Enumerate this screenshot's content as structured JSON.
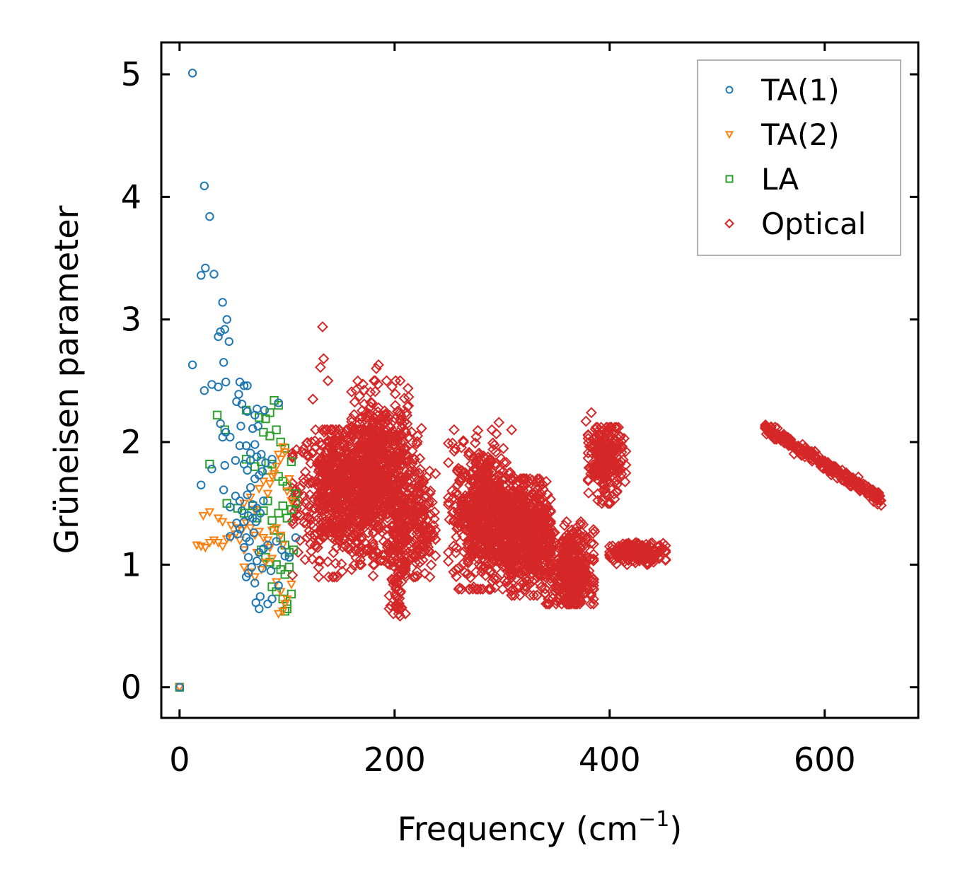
{
  "chart_data": {
    "type": "scatter",
    "title": "",
    "xlabel": "Frequency (cm",
    "xlabel_sup": "−1",
    "xlabel_tail": ")",
    "ylabel": "Grüneisen parameter",
    "xlim": [
      -17,
      687
    ],
    "ylim": [
      -0.25,
      5.26
    ],
    "xticks": [
      0,
      200,
      400,
      600
    ],
    "xtick_labels": [
      "0",
      "200",
      "400",
      "600"
    ],
    "yticks": [
      0,
      1,
      2,
      3,
      4,
      5
    ],
    "ytick_labels": [
      "0",
      "1",
      "2",
      "3",
      "4",
      "5"
    ],
    "legend_position": "top-right",
    "series": [
      {
        "name": "TA(1)",
        "marker": "circle",
        "color": "#1f77b4",
        "points": [
          [
            0,
            0
          ],
          [
            12,
            5.01
          ],
          [
            23,
            4.09
          ],
          [
            28,
            3.84
          ],
          [
            20,
            3.36
          ],
          [
            24,
            3.42
          ],
          [
            32,
            3.37
          ],
          [
            40,
            3.14
          ],
          [
            44,
            3.0
          ],
          [
            42,
            2.92
          ],
          [
            38,
            2.9
          ],
          [
            36,
            2.86
          ],
          [
            46,
            2.82
          ],
          [
            41,
            2.65
          ],
          [
            12,
            2.63
          ],
          [
            30,
            2.47
          ],
          [
            43,
            2.49
          ],
          [
            36,
            2.45
          ],
          [
            23,
            2.42
          ],
          [
            56,
            2.49
          ],
          [
            60,
            2.46
          ],
          [
            63,
            2.46
          ],
          [
            55,
            2.39
          ],
          [
            58,
            2.31
          ],
          [
            53,
            2.33
          ],
          [
            63,
            2.25
          ],
          [
            70,
            2.22
          ],
          [
            72,
            2.27
          ],
          [
            79,
            2.26
          ],
          [
            92,
            2.32
          ],
          [
            38,
            2.15
          ],
          [
            43,
            2.08
          ],
          [
            57,
            2.13
          ],
          [
            40,
            2.04
          ],
          [
            47,
            2.04
          ],
          [
            68,
            2.11
          ],
          [
            73,
            2.13
          ],
          [
            56,
            1.97
          ],
          [
            62,
            1.97
          ],
          [
            66,
            1.91
          ],
          [
            70,
            1.98
          ],
          [
            66,
            1.85
          ],
          [
            72,
            1.88
          ],
          [
            76,
            1.9
          ],
          [
            80,
            1.83
          ],
          [
            86,
            1.86
          ],
          [
            52,
            1.85
          ],
          [
            60,
            1.82
          ],
          [
            63,
            1.77
          ],
          [
            70,
            1.7
          ],
          [
            74,
            1.73
          ],
          [
            77,
            1.76
          ],
          [
            30,
            1.78
          ],
          [
            42,
            1.81
          ],
          [
            20,
            1.65
          ],
          [
            41,
            1.61
          ],
          [
            52,
            1.56
          ],
          [
            56,
            1.52
          ],
          [
            63,
            1.57
          ],
          [
            66,
            1.63
          ],
          [
            68,
            1.49
          ],
          [
            72,
            1.46
          ],
          [
            78,
            1.52
          ],
          [
            47,
            1.47
          ],
          [
            58,
            1.44
          ],
          [
            64,
            1.4
          ],
          [
            68,
            1.38
          ],
          [
            71,
            1.35
          ],
          [
            75,
            1.42
          ],
          [
            53,
            1.34
          ],
          [
            56,
            1.29
          ],
          [
            60,
            1.35
          ],
          [
            47,
            1.23
          ],
          [
            54,
            1.25
          ],
          [
            62,
            1.22
          ],
          [
            65,
            1.19
          ],
          [
            69,
            1.26
          ],
          [
            60,
            1.14
          ],
          [
            64,
            1.06
          ],
          [
            74,
            1.1
          ],
          [
            78,
            1.13
          ],
          [
            82,
            1.16
          ],
          [
            90,
            1.19
          ],
          [
            95,
            1.12
          ],
          [
            98,
            1.07
          ],
          [
            72,
            1.03
          ],
          [
            67,
            0.98
          ],
          [
            64,
            0.93
          ],
          [
            62,
            0.9
          ],
          [
            77,
            0.97
          ],
          [
            70,
            0.85
          ],
          [
            71,
            0.69
          ],
          [
            75,
            0.74
          ],
          [
            74,
            0.64
          ],
          [
            82,
            0.68
          ],
          [
            86,
            0.72
          ],
          [
            92,
            0.83
          ],
          [
            85,
            0.95
          ],
          [
            102,
            1.06
          ],
          [
            108,
            1.22
          ]
        ]
      },
      {
        "name": "TA(2)",
        "marker": "triangle-down",
        "color": "#ff7f0e",
        "points": [
          [
            0,
            0
          ],
          [
            16,
            1.16
          ],
          [
            20,
            1.15
          ],
          [
            24,
            1.14
          ],
          [
            28,
            1.18
          ],
          [
            32,
            1.2
          ],
          [
            36,
            1.18
          ],
          [
            40,
            1.15
          ],
          [
            44,
            1.21
          ],
          [
            48,
            1.22
          ],
          [
            52,
            1.25
          ],
          [
            56,
            1.2
          ],
          [
            22,
            1.4
          ],
          [
            28,
            1.43
          ],
          [
            36,
            1.38
          ],
          [
            40,
            1.35
          ],
          [
            48,
            1.32
          ],
          [
            54,
            1.3
          ],
          [
            58,
            1.28
          ],
          [
            62,
            1.34
          ],
          [
            66,
            1.3
          ],
          [
            70,
            1.24
          ],
          [
            74,
            1.27
          ],
          [
            78,
            1.22
          ],
          [
            82,
            1.2
          ],
          [
            86,
            1.28
          ],
          [
            90,
            1.3
          ],
          [
            94,
            1.24
          ],
          [
            60,
            1.5
          ],
          [
            66,
            1.55
          ],
          [
            70,
            1.45
          ],
          [
            74,
            1.62
          ],
          [
            78,
            1.68
          ],
          [
            82,
            1.58
          ],
          [
            86,
            1.72
          ],
          [
            90,
            1.8
          ],
          [
            94,
            1.86
          ],
          [
            98,
            1.92
          ],
          [
            84,
            1.66
          ],
          [
            88,
            1.74
          ],
          [
            92,
            1.9
          ],
          [
            96,
            1.96
          ],
          [
            100,
            1.6
          ],
          [
            102,
            1.7
          ],
          [
            104,
            1.52
          ],
          [
            60,
            0.98
          ],
          [
            66,
            0.94
          ],
          [
            70,
            0.9
          ],
          [
            76,
            0.96
          ],
          [
            80,
            1.02
          ],
          [
            86,
            1.05
          ],
          [
            90,
            0.86
          ],
          [
            94,
            0.78
          ],
          [
            98,
            0.68
          ],
          [
            96,
            0.62
          ],
          [
            92,
            0.6
          ],
          [
            100,
            0.72
          ],
          [
            104,
            0.84
          ],
          [
            60,
            1.12
          ],
          [
            72,
            1.1
          ],
          [
            84,
            1.14
          ],
          [
            96,
            1.16
          ]
        ]
      },
      {
        "name": "LA",
        "marker": "square",
        "color": "#2ca02c",
        "points": [
          [
            0,
            0
          ],
          [
            35,
            2.22
          ],
          [
            42,
            2.1
          ],
          [
            62,
            2.26
          ],
          [
            74,
            2.2
          ],
          [
            80,
            2.19
          ],
          [
            84,
            2.24
          ],
          [
            88,
            2.34
          ],
          [
            92,
            2.3
          ],
          [
            78,
            2.08
          ],
          [
            84,
            2.05
          ],
          [
            90,
            2.1
          ],
          [
            94,
            2.0
          ],
          [
            98,
            1.95
          ],
          [
            28,
            1.82
          ],
          [
            62,
            1.86
          ],
          [
            70,
            1.8
          ],
          [
            76,
            1.84
          ],
          [
            82,
            1.77
          ],
          [
            86,
            1.82
          ],
          [
            92,
            1.72
          ],
          [
            96,
            1.68
          ],
          [
            100,
            1.64
          ],
          [
            104,
            1.84
          ],
          [
            108,
            1.58
          ],
          [
            44,
            1.5
          ],
          [
            54,
            1.46
          ],
          [
            60,
            1.42
          ],
          [
            68,
            1.48
          ],
          [
            72,
            1.38
          ],
          [
            78,
            1.44
          ],
          [
            82,
            1.52
          ],
          [
            86,
            1.36
          ],
          [
            92,
            1.42
          ],
          [
            96,
            1.48
          ],
          [
            100,
            1.38
          ],
          [
            104,
            1.45
          ],
          [
            108,
            1.5
          ],
          [
            88,
            1.28
          ],
          [
            94,
            1.22
          ],
          [
            98,
            1.16
          ],
          [
            102,
            1.1
          ],
          [
            106,
            1.12
          ],
          [
            76,
            1.12
          ],
          [
            80,
            1.06
          ],
          [
            84,
            1.02
          ],
          [
            90,
            1.0
          ],
          [
            94,
            0.96
          ],
          [
            98,
            0.92
          ],
          [
            102,
            0.98
          ],
          [
            86,
            0.82
          ],
          [
            90,
            0.78
          ],
          [
            96,
            0.72
          ],
          [
            100,
            0.68
          ],
          [
            104,
            0.76
          ],
          [
            98,
            0.62
          ],
          [
            100,
            0.64
          ]
        ]
      },
      {
        "name": "Optical",
        "marker": "diamond",
        "color": "#d62728",
        "clusters": [
          {
            "x": [
              105,
              180
            ],
            "y": [
              0.9,
              2.1
            ],
            "n": 700,
            "center": [
              150,
              1.6
            ],
            "spread": [
              20,
              0.27
            ]
          },
          {
            "x": [
              160,
              225
            ],
            "y": [
              1.0,
              2.5
            ],
            "n": 700,
            "center": [
              188,
              1.75
            ],
            "spread": [
              15,
              0.3
            ]
          },
          {
            "x": [
              195,
              210
            ],
            "y": [
              0.6,
              1.8
            ],
            "n": 120,
            "center": [
              203,
              1.1
            ],
            "spread": [
              5,
              0.3
            ]
          },
          {
            "x": [
              210,
              238
            ],
            "y": [
              0.9,
              1.8
            ],
            "n": 150,
            "center": [
              222,
              1.3
            ],
            "spread": [
              8,
              0.22
            ]
          },
          {
            "x": [
              250,
              310
            ],
            "y": [
              0.8,
              2.1
            ],
            "n": 700,
            "center": [
              285,
              1.4
            ],
            "spread": [
              15,
              0.28
            ]
          },
          {
            "x": [
              300,
              345
            ],
            "y": [
              0.75,
              1.7
            ],
            "n": 600,
            "center": [
              325,
              1.25
            ],
            "spread": [
              12,
              0.22
            ]
          },
          {
            "x": [
              340,
              385
            ],
            "y": [
              0.68,
              1.35
            ],
            "n": 400,
            "center": [
              365,
              0.95
            ],
            "spread": [
              10,
              0.16
            ]
          },
          {
            "x": [
              380,
              415
            ],
            "y": [
              1.5,
              2.12
            ],
            "n": 250,
            "center": [
              396,
              1.85
            ],
            "spread": [
              8,
              0.15
            ]
          },
          {
            "x": [
              400,
              452
            ],
            "y": [
              1.0,
              1.2
            ],
            "n": 200,
            "center": [
              425,
              1.1
            ],
            "spread": [
              14,
              0.04
            ]
          }
        ],
        "outliers": [
          [
            133,
            2.94
          ],
          [
            134,
            2.68
          ],
          [
            131,
            2.61
          ],
          [
            138,
            2.5
          ],
          [
            124,
            2.35
          ],
          [
            160,
            2.41
          ],
          [
            185,
            2.63
          ],
          [
            183,
            2.6
          ],
          [
            383,
            2.24
          ],
          [
            378,
            2.17
          ],
          [
            297,
            2.16
          ],
          [
            264,
            2.0
          ],
          [
            250,
            1.1
          ],
          [
            145,
            1.01
          ],
          [
            160,
            0.96
          ],
          [
            343,
            0.72
          ],
          [
            325,
            0.88
          ],
          [
            386,
            1.27
          ],
          [
            372,
            0.7
          ],
          [
            205,
            0.58
          ]
        ],
        "line": {
          "x": [
            545,
            653
          ],
          "y": [
            2.12,
            1.53
          ],
          "n": 240
        }
      }
    ]
  }
}
